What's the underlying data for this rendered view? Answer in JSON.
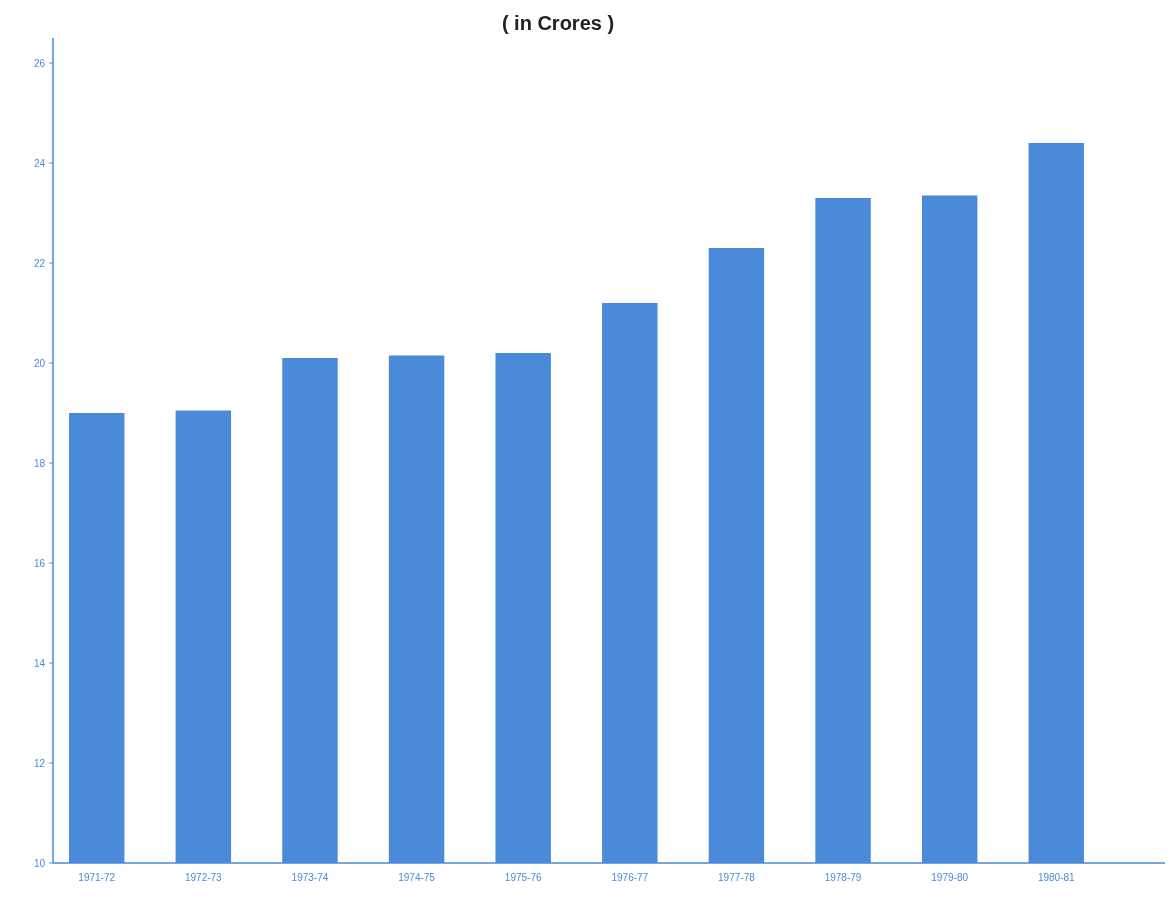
{
  "chart_data": {
    "type": "bar",
    "title": "( in Crores )",
    "categories": [
      "1971-72",
      "1972-73",
      "1973-74",
      "1974-75",
      "1975-76",
      "1976-77",
      "1977-78",
      "1978-79",
      "1979-80",
      "1980-81"
    ],
    "values": [
      19.0,
      19.05,
      20.1,
      20.15,
      20.2,
      21.2,
      22.3,
      23.3,
      23.35,
      24.4
    ],
    "color": "#4a8ad8",
    "ylim": [
      10,
      26.5
    ],
    "yticks": [
      10,
      12,
      14,
      16,
      18,
      20,
      22,
      24,
      26
    ],
    "grid": false
  }
}
